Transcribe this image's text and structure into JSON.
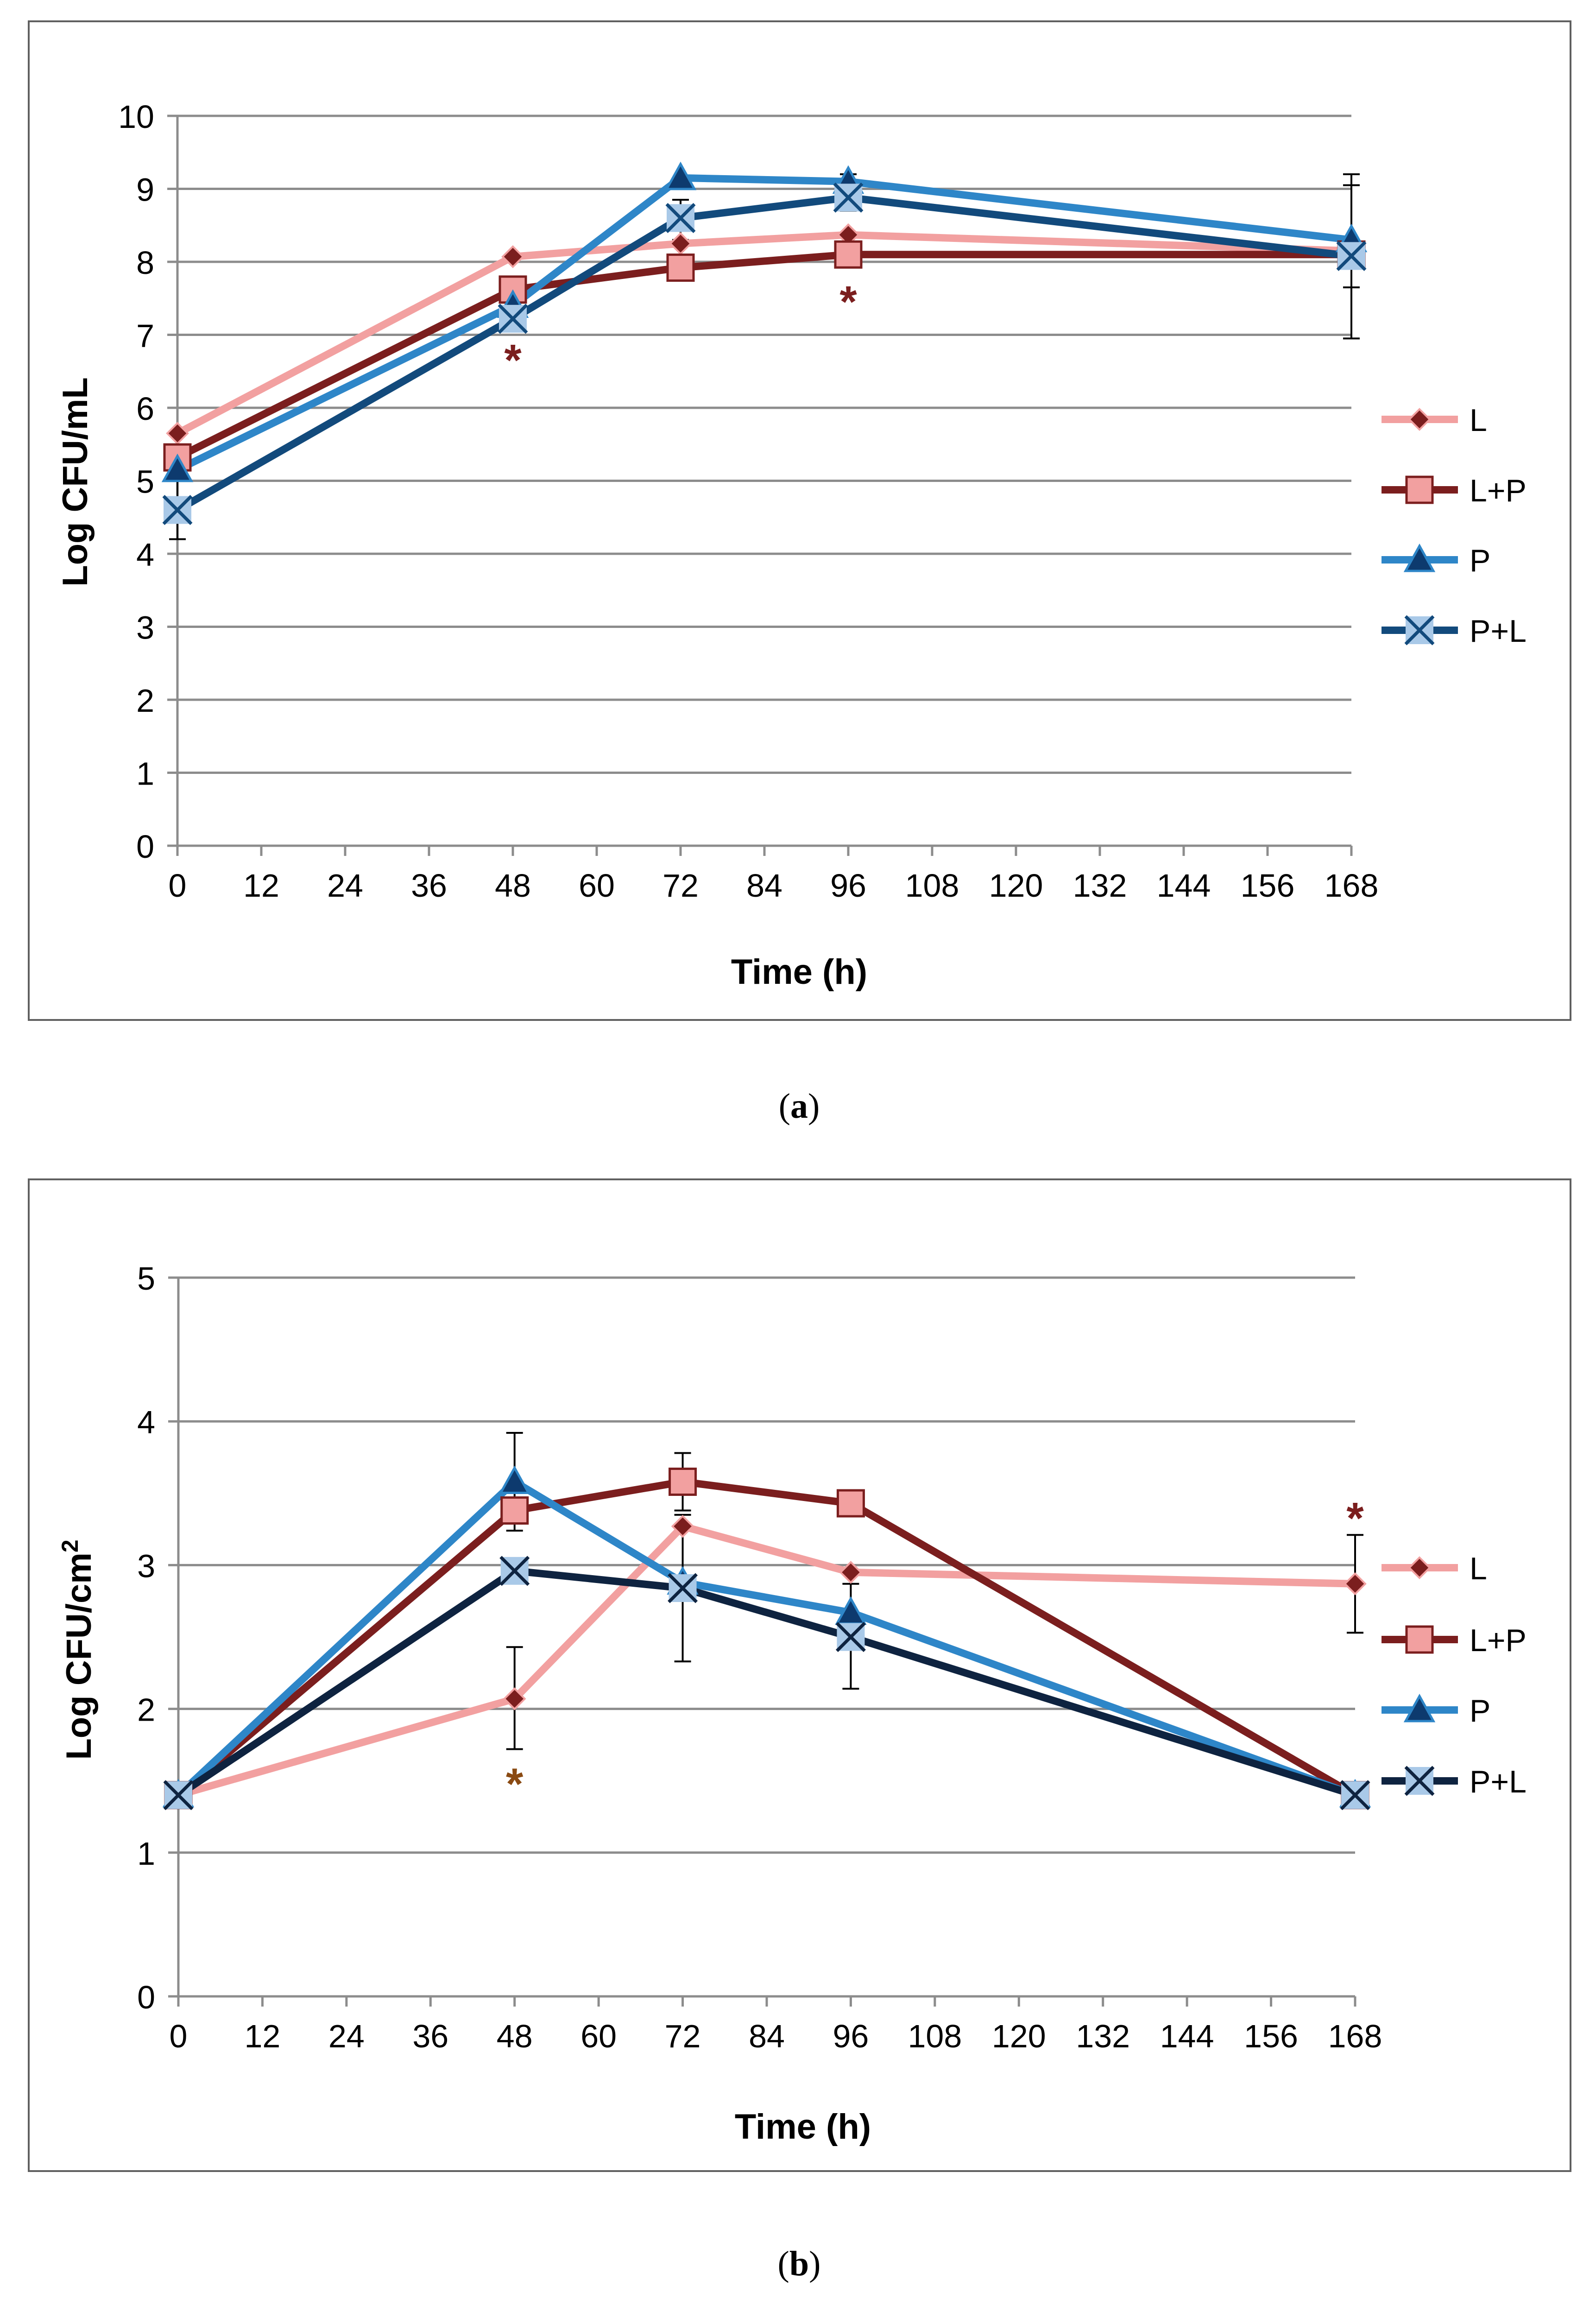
{
  "chart_data": [
    {
      "type": "line",
      "panel_label": "a",
      "xlabel": "Time (h)",
      "ylabel": "Log CFU/mL",
      "xlim": [
        0,
        168
      ],
      "ylim": [
        0,
        10
      ],
      "x_ticks": [
        "0",
        "12",
        "24",
        "36",
        "48",
        "60",
        "72",
        "84",
        "96",
        "108",
        "120",
        "132",
        "144",
        "156",
        "168"
      ],
      "y_ticks": [
        "0",
        "1",
        "2",
        "3",
        "4",
        "5",
        "6",
        "7",
        "8",
        "9",
        "10"
      ],
      "grid": true,
      "legend_position": "right",
      "series": [
        {
          "name": "L",
          "marker": "diamond",
          "color": "#f2a0a0",
          "marker_color": "#7b1e1e",
          "x": [
            0,
            48,
            72,
            96,
            168
          ],
          "y": [
            5.65,
            8.07,
            8.25,
            8.37,
            8.15
          ]
        },
        {
          "name": "L+P",
          "marker": "square",
          "color": "#7b1e1e",
          "marker_color": "#f2a0a0",
          "x": [
            0,
            48,
            72,
            96,
            168
          ],
          "y": [
            5.32,
            7.62,
            7.92,
            8.1,
            8.1
          ]
        },
        {
          "name": "P",
          "marker": "triangle",
          "color": "#2e86c8",
          "marker_color": "#0d3a6e",
          "x": [
            0,
            48,
            72,
            96,
            168
          ],
          "y": [
            5.15,
            7.4,
            9.15,
            9.1,
            8.3
          ]
        },
        {
          "name": "P+L",
          "marker": "x-square",
          "color": "#124a7c",
          "marker_color": "#a9c9e8",
          "x": [
            0,
            48,
            72,
            96,
            168
          ],
          "y": [
            4.6,
            7.22,
            8.6,
            8.88,
            8.08
          ]
        }
      ],
      "error_bars": [
        {
          "x": 0,
          "low": 4.2,
          "high": 5.0
        },
        {
          "x": 72,
          "low": 8.3,
          "high": 8.85
        },
        {
          "x": 96,
          "low": 8.7,
          "high": 9.2
        },
        {
          "x": 168,
          "low": 6.95,
          "high": 9.2
        },
        {
          "x": 168,
          "low": 7.65,
          "high": 9.05
        }
      ],
      "annotations": [
        {
          "text": "*",
          "x": 48,
          "y": 6.7,
          "color": "#7b1e1e"
        },
        {
          "text": "*",
          "x": 96,
          "y": 7.5,
          "color": "#7b1e1e"
        }
      ]
    },
    {
      "type": "line",
      "panel_label": "b",
      "xlabel": "Time (h)",
      "ylabel": "Log CFU/cm",
      "ylabel_superscript": "2",
      "xlim": [
        0,
        168
      ],
      "ylim": [
        0,
        5
      ],
      "x_ticks": [
        "0",
        "12",
        "24",
        "36",
        "48",
        "60",
        "72",
        "84",
        "96",
        "108",
        "120",
        "132",
        "144",
        "156",
        "168"
      ],
      "y_ticks": [
        "0",
        "1",
        "2",
        "3",
        "4",
        "5"
      ],
      "grid": true,
      "legend_position": "right",
      "series": [
        {
          "name": "L",
          "marker": "diamond",
          "color": "#f2a0a0",
          "marker_color": "#7b1e1e",
          "x": [
            0,
            48,
            72,
            96,
            168
          ],
          "y": [
            1.4,
            2.07,
            3.27,
            2.95,
            2.87
          ]
        },
        {
          "name": "L+P",
          "marker": "square",
          "color": "#7b1e1e",
          "marker_color": "#f2a0a0",
          "x": [
            0,
            48,
            72,
            96,
            168
          ],
          "y": [
            1.4,
            3.38,
            3.58,
            3.43,
            1.4
          ]
        },
        {
          "name": "P",
          "marker": "triangle",
          "color": "#2e86c8",
          "marker_color": "#0d3a6e",
          "x": [
            0,
            48,
            72,
            96,
            168
          ],
          "y": [
            1.4,
            3.58,
            2.88,
            2.67,
            1.4
          ]
        },
        {
          "name": "P+L",
          "marker": "x-square",
          "color": "#0e2340",
          "marker_color": "#a9c9e8",
          "x": [
            0,
            48,
            72,
            96,
            168
          ],
          "y": [
            1.4,
            2.96,
            2.84,
            2.5,
            1.4
          ]
        }
      ],
      "error_bars": [
        {
          "x": 48,
          "low": 1.72,
          "high": 2.43
        },
        {
          "x": 48,
          "low": 3.24,
          "high": 3.92
        },
        {
          "x": 72,
          "low": 3.38,
          "high": 3.78
        },
        {
          "x": 72,
          "low": 2.33,
          "high": 3.35
        },
        {
          "x": 96,
          "low": 2.14,
          "high": 2.87
        },
        {
          "x": 168,
          "low": 2.53,
          "high": 3.21
        }
      ],
      "annotations": [
        {
          "text": "*",
          "x": 48,
          "y": 1.5,
          "color": "#8a4a12"
        },
        {
          "text": "*",
          "x": 168,
          "y": 3.35,
          "color": "#7b1e1e"
        }
      ]
    }
  ]
}
